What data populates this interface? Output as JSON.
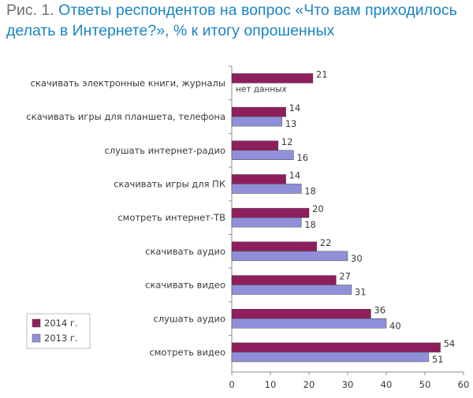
{
  "caption": {
    "figure_label": "Рис. 1.",
    "text": "Ответы респондентов на вопрос «Что вам приходилось делать в Интернете?», % к итогу опрошенных"
  },
  "colors": {
    "series_2014": "#8e1f5c",
    "series_2013": "#8f90d9",
    "caption": "#1b84c4",
    "axis": "#8c8c8c"
  },
  "chart_data": {
    "type": "bar",
    "orientation": "horizontal",
    "categories": [
      "скачивать электронные книги, журналы",
      "скачивать игры для планшета, телефона",
      "слушать интернет-радио",
      "скачивать игры для ПК",
      "смотреть интернет-ТВ",
      "скачивать аудио",
      "скачивать видео",
      "слушать аудио",
      "смотреть видео"
    ],
    "series": [
      {
        "name": "2014 г.",
        "values": [
          21,
          14,
          12,
          14,
          20,
          22,
          27,
          36,
          54
        ]
      },
      {
        "name": "2013 г.",
        "values": [
          null,
          13,
          16,
          18,
          18,
          30,
          31,
          40,
          51
        ]
      }
    ],
    "missing_label": "нет данных",
    "xlim": [
      0,
      60
    ],
    "x_ticks": [
      "0",
      "10",
      "20",
      "30",
      "40",
      "50",
      "60"
    ],
    "grid": false,
    "legend_position": "left"
  }
}
